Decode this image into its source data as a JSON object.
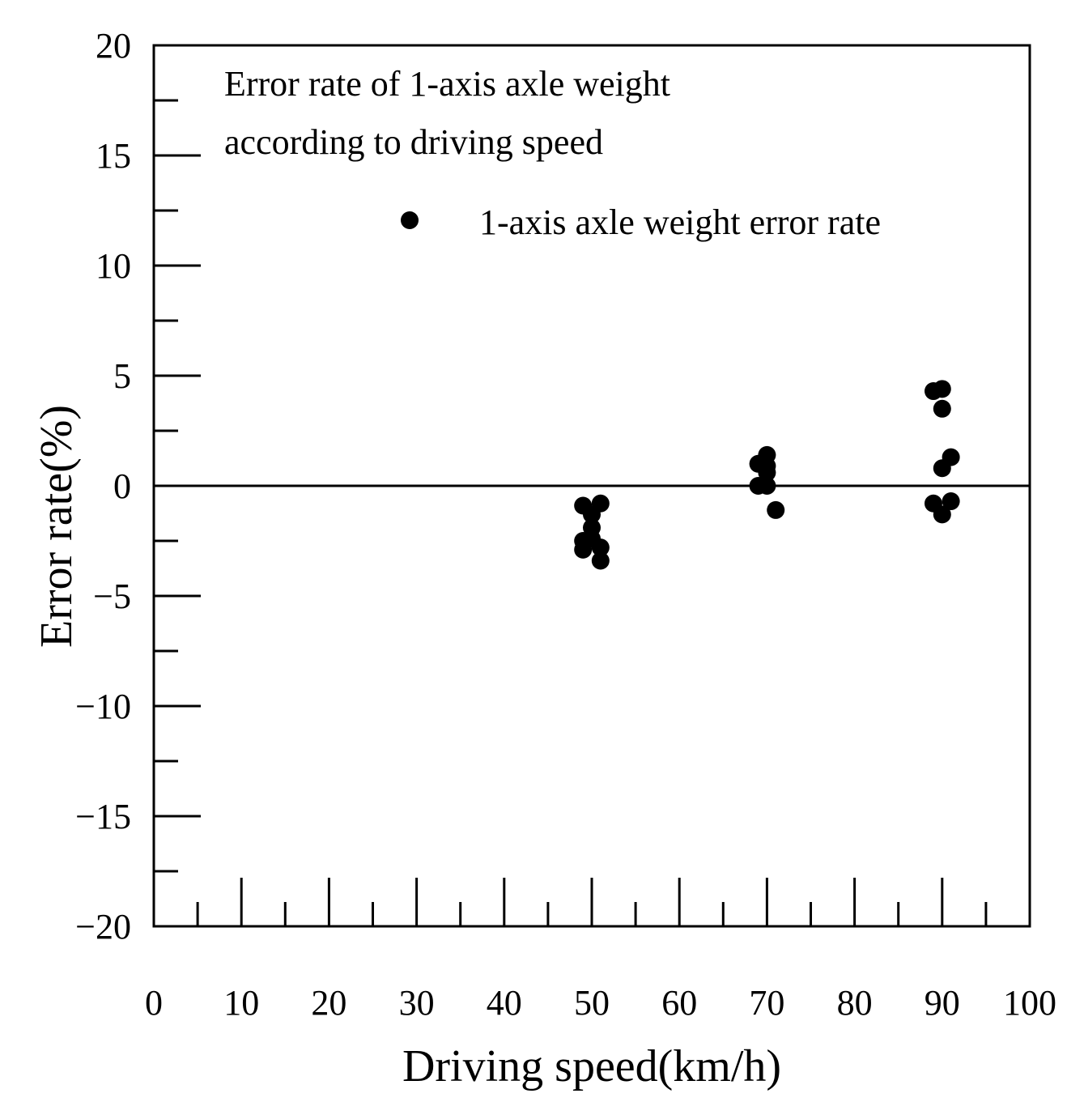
{
  "chart_data": {
    "type": "scatter",
    "title": "",
    "annotation_lines": [
      "Error rate of 1-axis axle weight",
      "according to driving speed"
    ],
    "xlabel": "Driving speed(km/h)",
    "ylabel": "Error rate(%)",
    "xlim": [
      0,
      100
    ],
    "ylim": [
      -20,
      20
    ],
    "x_ticks": [
      0,
      10,
      20,
      30,
      40,
      50,
      60,
      70,
      80,
      90,
      100
    ],
    "x_tick_labels": [
      "0",
      "10",
      "20",
      "30",
      "40",
      "50",
      "60",
      "70",
      "80",
      "90",
      "100"
    ],
    "y_ticks": [
      -20,
      -15,
      -10,
      -5,
      0,
      5,
      10,
      15,
      20
    ],
    "y_tick_labels": [
      "−20",
      "−15",
      "−10",
      "−5",
      "0",
      "5",
      "10",
      "15",
      "20"
    ],
    "grid": false,
    "reference_line_y": 0,
    "legend": {
      "placement": "top-right",
      "entries": [
        "1-axis axle weight error rate"
      ]
    },
    "series": [
      {
        "name": "1-axis axle weight error rate",
        "color": "#000000",
        "marker": "circle",
        "points": [
          {
            "x": 49,
            "y": -0.9
          },
          {
            "x": 51,
            "y": -0.8
          },
          {
            "x": 50,
            "y": -1.3
          },
          {
            "x": 50,
            "y": -1.9
          },
          {
            "x": 49,
            "y": -2.5
          },
          {
            "x": 49,
            "y": -2.9
          },
          {
            "x": 50,
            "y": -2.4
          },
          {
            "x": 51,
            "y": -2.8
          },
          {
            "x": 51,
            "y": -3.4
          },
          {
            "x": 70,
            "y": 1.4
          },
          {
            "x": 69,
            "y": 1.0
          },
          {
            "x": 70,
            "y": 0.9
          },
          {
            "x": 70,
            "y": 0.6
          },
          {
            "x": 69,
            "y": 0.0
          },
          {
            "x": 70,
            "y": 0.0
          },
          {
            "x": 71,
            "y": -1.1
          },
          {
            "x": 89,
            "y": 4.3
          },
          {
            "x": 90,
            "y": 4.4
          },
          {
            "x": 90,
            "y": 3.5
          },
          {
            "x": 91,
            "y": 1.3
          },
          {
            "x": 90,
            "y": 0.8
          },
          {
            "x": 89,
            "y": -0.8
          },
          {
            "x": 91,
            "y": -0.7
          },
          {
            "x": 90,
            "y": -1.3
          }
        ]
      }
    ]
  }
}
